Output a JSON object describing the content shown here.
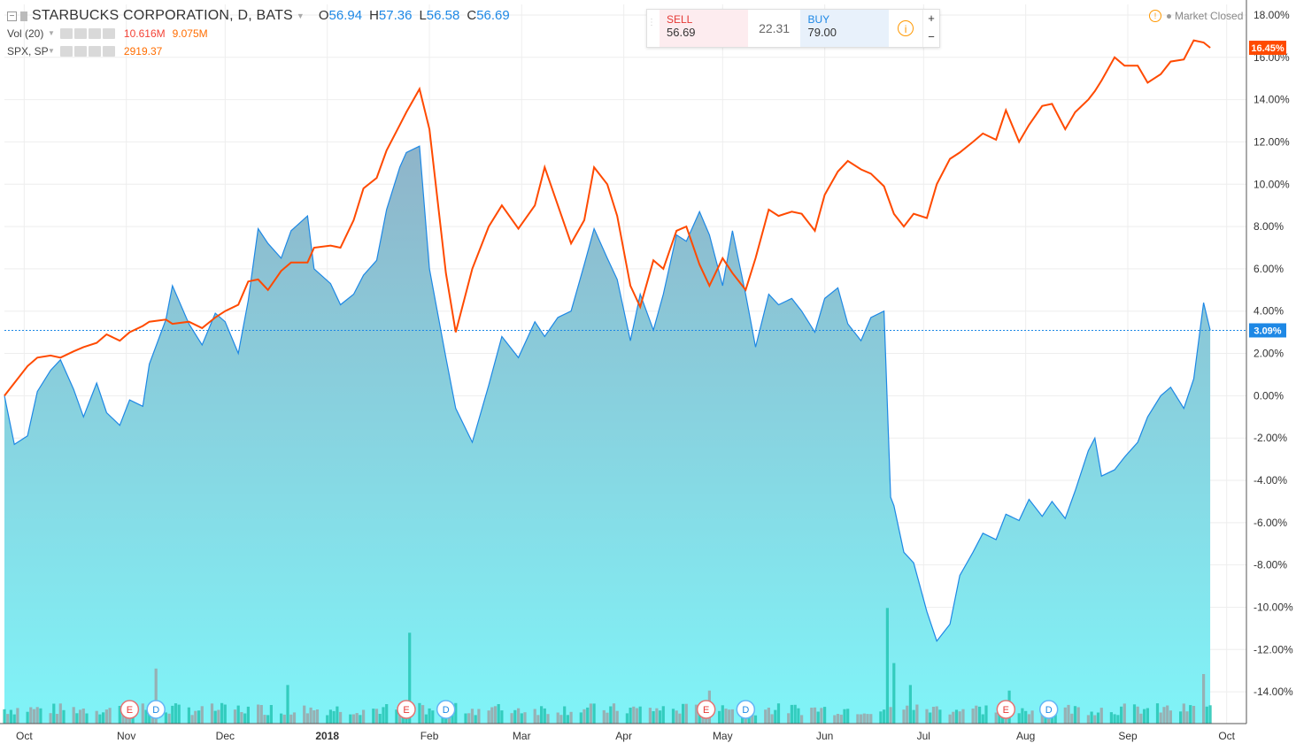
{
  "header": {
    "symbol_title": "STARBUCKS CORPORATION, D, BATS",
    "open_key": "O",
    "open": "56.94",
    "high_key": "H",
    "high": "57.36",
    "low_key": "L",
    "low": "56.58",
    "close_key": "C",
    "close": "56.69"
  },
  "indicators": [
    {
      "name": "Vol (20)",
      "values": [
        "10.616M",
        "9.075M"
      ]
    },
    {
      "name": "SPX, SP",
      "values": [
        "2919.37"
      ]
    }
  ],
  "trade_panel": {
    "sell_label": "SELL",
    "sell_price": "56.69",
    "spread": "22.31",
    "buy_label": "BUY",
    "buy_price": "79.00",
    "plus": "+",
    "minus": "−"
  },
  "market_status": "Market Closed",
  "colors": {
    "primary_line": "#1e88e5",
    "primary_fill_top": "#8fb4c9",
    "primary_fill_bottom": "#80f4f8",
    "compare_line": "#ff4a00",
    "volume_up": "#26c6b4",
    "volume_down": "#9aa5a8",
    "grid": "#eeeeee"
  },
  "chart_data": {
    "type": "area",
    "ylabel": "",
    "y_unit": "%",
    "ylim": [
      -15.5,
      18.5
    ],
    "y_ticks": [
      18,
      16,
      14,
      12,
      10,
      8,
      6,
      4,
      2,
      0,
      -2,
      -4,
      -6,
      -8,
      -10,
      -12,
      -14
    ],
    "y_tick_labels": [
      "18.00%",
      "16.00%",
      "14.00%",
      "12.00%",
      "10.00%",
      "8.00%",
      "6.00%",
      "4.00%",
      "2.00%",
      "0.00%",
      "-2.00%",
      "-4.00%",
      "-6.00%",
      "-8.00%",
      "-10.00%",
      "-12.00%",
      "-14.00%"
    ],
    "x_range": [
      "2017-09-25",
      "2018-10-07"
    ],
    "x_ticks": [
      {
        "date": "2017-10-01",
        "label": "Oct",
        "bold": false
      },
      {
        "date": "2017-11-01",
        "label": "Nov",
        "bold": false
      },
      {
        "date": "2017-12-01",
        "label": "Dec",
        "bold": false
      },
      {
        "date": "2018-01-01",
        "label": "2018",
        "bold": true
      },
      {
        "date": "2018-02-01",
        "label": "Feb",
        "bold": false
      },
      {
        "date": "2018-03-01",
        "label": "Mar",
        "bold": false
      },
      {
        "date": "2018-04-01",
        "label": "Apr",
        "bold": false
      },
      {
        "date": "2018-05-01",
        "label": "May",
        "bold": false
      },
      {
        "date": "2018-06-01",
        "label": "Jun",
        "bold": false
      },
      {
        "date": "2018-07-01",
        "label": "Jul",
        "bold": false
      },
      {
        "date": "2018-08-01",
        "label": "Aug",
        "bold": false
      },
      {
        "date": "2018-09-01",
        "label": "Sep",
        "bold": false
      },
      {
        "date": "2018-10-01",
        "label": "Oct",
        "bold": false
      }
    ],
    "series": [
      {
        "name": "STARBUCKS CORPORATION",
        "kind": "area",
        "last_value_label": "3.09%",
        "points": [
          [
            "2017-09-25",
            0.0
          ],
          [
            "2017-09-28",
            -2.3
          ],
          [
            "2017-10-02",
            -1.9
          ],
          [
            "2017-10-05",
            0.2
          ],
          [
            "2017-10-09",
            1.2
          ],
          [
            "2017-10-12",
            1.7
          ],
          [
            "2017-10-16",
            0.3
          ],
          [
            "2017-10-19",
            -1.0
          ],
          [
            "2017-10-23",
            0.6
          ],
          [
            "2017-10-26",
            -0.8
          ],
          [
            "2017-10-30",
            -1.4
          ],
          [
            "2017-11-02",
            -0.2
          ],
          [
            "2017-11-06",
            -0.5
          ],
          [
            "2017-11-08",
            1.5
          ],
          [
            "2017-11-13",
            3.6
          ],
          [
            "2017-11-15",
            5.2
          ],
          [
            "2017-11-20",
            3.4
          ],
          [
            "2017-11-24",
            2.4
          ],
          [
            "2017-11-28",
            3.9
          ],
          [
            "2017-12-01",
            3.5
          ],
          [
            "2017-12-05",
            2.0
          ],
          [
            "2017-12-08",
            4.5
          ],
          [
            "2017-12-11",
            7.9
          ],
          [
            "2017-12-14",
            7.2
          ],
          [
            "2017-12-18",
            6.5
          ],
          [
            "2017-12-21",
            7.8
          ],
          [
            "2017-12-26",
            8.5
          ],
          [
            "2017-12-28",
            6.0
          ],
          [
            "2018-01-02",
            5.3
          ],
          [
            "2018-01-05",
            4.3
          ],
          [
            "2018-01-09",
            4.8
          ],
          [
            "2018-01-12",
            5.7
          ],
          [
            "2018-01-16",
            6.4
          ],
          [
            "2018-01-19",
            8.8
          ],
          [
            "2018-01-23",
            10.8
          ],
          [
            "2018-01-25",
            11.5
          ],
          [
            "2018-01-29",
            11.8
          ],
          [
            "2018-02-01",
            6.0
          ],
          [
            "2018-02-06",
            1.8
          ],
          [
            "2018-02-09",
            -0.6
          ],
          [
            "2018-02-14",
            -2.2
          ],
          [
            "2018-02-19",
            0.5
          ],
          [
            "2018-02-23",
            2.8
          ],
          [
            "2018-02-28",
            1.8
          ],
          [
            "2018-03-05",
            3.5
          ],
          [
            "2018-03-08",
            2.8
          ],
          [
            "2018-03-12",
            3.7
          ],
          [
            "2018-03-16",
            4.0
          ],
          [
            "2018-03-20",
            6.2
          ],
          [
            "2018-03-23",
            7.9
          ],
          [
            "2018-03-27",
            6.5
          ],
          [
            "2018-03-30",
            5.5
          ],
          [
            "2018-04-03",
            2.6
          ],
          [
            "2018-04-06",
            4.8
          ],
          [
            "2018-04-10",
            3.1
          ],
          [
            "2018-04-13",
            4.8
          ],
          [
            "2018-04-17",
            7.6
          ],
          [
            "2018-04-20",
            7.3
          ],
          [
            "2018-04-24",
            8.7
          ],
          [
            "2018-04-27",
            7.6
          ],
          [
            "2018-05-01",
            5.2
          ],
          [
            "2018-05-04",
            7.8
          ],
          [
            "2018-05-08",
            4.8
          ],
          [
            "2018-05-11",
            2.3
          ],
          [
            "2018-05-15",
            4.8
          ],
          [
            "2018-05-18",
            4.3
          ],
          [
            "2018-05-22",
            4.6
          ],
          [
            "2018-05-25",
            4.0
          ],
          [
            "2018-05-29",
            3.0
          ],
          [
            "2018-06-01",
            4.6
          ],
          [
            "2018-06-05",
            5.1
          ],
          [
            "2018-06-08",
            3.4
          ],
          [
            "2018-06-12",
            2.6
          ],
          [
            "2018-06-15",
            3.7
          ],
          [
            "2018-06-19",
            4.0
          ],
          [
            "2018-06-21",
            -4.8
          ],
          [
            "2018-06-22",
            -5.2
          ],
          [
            "2018-06-25",
            -7.4
          ],
          [
            "2018-06-28",
            -7.9
          ],
          [
            "2018-07-02",
            -10.2
          ],
          [
            "2018-07-05",
            -11.6
          ],
          [
            "2018-07-09",
            -10.8
          ],
          [
            "2018-07-12",
            -8.5
          ],
          [
            "2018-07-16",
            -7.4
          ],
          [
            "2018-07-19",
            -6.5
          ],
          [
            "2018-07-23",
            -6.8
          ],
          [
            "2018-07-26",
            -5.6
          ],
          [
            "2018-07-30",
            -5.9
          ],
          [
            "2018-08-02",
            -4.9
          ],
          [
            "2018-08-06",
            -5.7
          ],
          [
            "2018-08-09",
            -5.0
          ],
          [
            "2018-08-13",
            -5.8
          ],
          [
            "2018-08-16",
            -4.5
          ],
          [
            "2018-08-20",
            -2.6
          ],
          [
            "2018-08-22",
            -2.0
          ],
          [
            "2018-08-24",
            -3.8
          ],
          [
            "2018-08-28",
            -3.5
          ],
          [
            "2018-08-31",
            -2.9
          ],
          [
            "2018-09-04",
            -2.2
          ],
          [
            "2018-09-07",
            -1.0
          ],
          [
            "2018-09-11",
            0.0
          ],
          [
            "2018-09-14",
            0.4
          ],
          [
            "2018-09-18",
            -0.6
          ],
          [
            "2018-09-21",
            0.8
          ],
          [
            "2018-09-24",
            4.4
          ],
          [
            "2018-09-26",
            3.09
          ]
        ]
      },
      {
        "name": "SPX, SP",
        "kind": "line",
        "last_value_label": "16.45%",
        "points": [
          [
            "2017-09-25",
            0.0
          ],
          [
            "2017-09-28",
            0.6
          ],
          [
            "2017-10-02",
            1.4
          ],
          [
            "2017-10-05",
            1.8
          ],
          [
            "2017-10-09",
            1.9
          ],
          [
            "2017-10-12",
            1.8
          ],
          [
            "2017-10-16",
            2.1
          ],
          [
            "2017-10-19",
            2.3
          ],
          [
            "2017-10-23",
            2.5
          ],
          [
            "2017-10-26",
            2.9
          ],
          [
            "2017-10-30",
            2.6
          ],
          [
            "2017-11-02",
            3.0
          ],
          [
            "2017-11-06",
            3.3
          ],
          [
            "2017-11-08",
            3.5
          ],
          [
            "2017-11-13",
            3.6
          ],
          [
            "2017-11-15",
            3.4
          ],
          [
            "2017-11-20",
            3.5
          ],
          [
            "2017-11-24",
            3.2
          ],
          [
            "2017-11-28",
            3.7
          ],
          [
            "2017-12-01",
            4.0
          ],
          [
            "2017-12-05",
            4.3
          ],
          [
            "2017-12-08",
            5.4
          ],
          [
            "2017-12-11",
            5.5
          ],
          [
            "2017-12-14",
            5.0
          ],
          [
            "2017-12-18",
            5.9
          ],
          [
            "2017-12-21",
            6.3
          ],
          [
            "2017-12-26",
            6.3
          ],
          [
            "2017-12-28",
            7.0
          ],
          [
            "2018-01-02",
            7.1
          ],
          [
            "2018-01-05",
            7.0
          ],
          [
            "2018-01-09",
            8.3
          ],
          [
            "2018-01-12",
            9.8
          ],
          [
            "2018-01-16",
            10.3
          ],
          [
            "2018-01-19",
            11.6
          ],
          [
            "2018-01-23",
            12.8
          ],
          [
            "2018-01-25",
            13.4
          ],
          [
            "2018-01-29",
            14.5
          ],
          [
            "2018-02-01",
            12.6
          ],
          [
            "2018-02-06",
            5.8
          ],
          [
            "2018-02-09",
            3.0
          ],
          [
            "2018-02-14",
            6.0
          ],
          [
            "2018-02-19",
            8.0
          ],
          [
            "2018-02-23",
            9.0
          ],
          [
            "2018-02-28",
            7.9
          ],
          [
            "2018-03-05",
            9.0
          ],
          [
            "2018-03-08",
            10.8
          ],
          [
            "2018-03-12",
            9.0
          ],
          [
            "2018-03-16",
            7.2
          ],
          [
            "2018-03-20",
            8.3
          ],
          [
            "2018-03-23",
            10.8
          ],
          [
            "2018-03-27",
            10.0
          ],
          [
            "2018-03-30",
            8.5
          ],
          [
            "2018-04-03",
            5.2
          ],
          [
            "2018-04-06",
            4.2
          ],
          [
            "2018-04-10",
            6.4
          ],
          [
            "2018-04-13",
            6.0
          ],
          [
            "2018-04-17",
            7.8
          ],
          [
            "2018-04-20",
            8.0
          ],
          [
            "2018-04-24",
            6.2
          ],
          [
            "2018-04-27",
            5.2
          ],
          [
            "2018-05-01",
            6.5
          ],
          [
            "2018-05-04",
            5.8
          ],
          [
            "2018-05-08",
            5.0
          ],
          [
            "2018-05-11",
            6.5
          ],
          [
            "2018-05-15",
            8.8
          ],
          [
            "2018-05-18",
            8.5
          ],
          [
            "2018-05-22",
            8.7
          ],
          [
            "2018-05-25",
            8.6
          ],
          [
            "2018-05-29",
            7.8
          ],
          [
            "2018-06-01",
            9.5
          ],
          [
            "2018-06-05",
            10.6
          ],
          [
            "2018-06-08",
            11.1
          ],
          [
            "2018-06-12",
            10.7
          ],
          [
            "2018-06-15",
            10.5
          ],
          [
            "2018-06-19",
            9.9
          ],
          [
            "2018-06-22",
            8.6
          ],
          [
            "2018-06-25",
            8.0
          ],
          [
            "2018-06-28",
            8.6
          ],
          [
            "2018-07-02",
            8.4
          ],
          [
            "2018-07-05",
            10.0
          ],
          [
            "2018-07-09",
            11.2
          ],
          [
            "2018-07-12",
            11.5
          ],
          [
            "2018-07-16",
            12.0
          ],
          [
            "2018-07-19",
            12.4
          ],
          [
            "2018-07-23",
            12.1
          ],
          [
            "2018-07-26",
            13.5
          ],
          [
            "2018-07-30",
            12.0
          ],
          [
            "2018-08-02",
            12.8
          ],
          [
            "2018-08-06",
            13.7
          ],
          [
            "2018-08-09",
            13.8
          ],
          [
            "2018-08-13",
            12.6
          ],
          [
            "2018-08-16",
            13.4
          ],
          [
            "2018-08-20",
            14.0
          ],
          [
            "2018-08-22",
            14.4
          ],
          [
            "2018-08-24",
            14.9
          ],
          [
            "2018-08-28",
            16.0
          ],
          [
            "2018-08-31",
            15.6
          ],
          [
            "2018-09-04",
            15.6
          ],
          [
            "2018-09-07",
            14.8
          ],
          [
            "2018-09-11",
            15.2
          ],
          [
            "2018-09-14",
            15.8
          ],
          [
            "2018-09-18",
            15.9
          ],
          [
            "2018-09-21",
            16.8
          ],
          [
            "2018-09-24",
            16.7
          ],
          [
            "2018-09-26",
            16.45
          ]
        ]
      }
    ],
    "volume": {
      "name": "Vol (20)",
      "unit": "M",
      "spikes": [
        [
          "2017-11-10",
          20.0
        ],
        [
          "2017-12-20",
          14.0
        ],
        [
          "2018-01-26",
          33.0
        ],
        [
          "2018-04-27",
          12.0
        ],
        [
          "2018-06-20",
          42.0
        ],
        [
          "2018-06-22",
          22.0
        ],
        [
          "2018-06-27",
          14.0
        ],
        [
          "2018-07-27",
          12.0
        ],
        [
          "2018-09-24",
          18.0
        ]
      ],
      "base_level": 5.0,
      "max_level": 45.0
    },
    "events": [
      {
        "date": "2017-11-02",
        "label": "E"
      },
      {
        "date": "2017-11-10",
        "label": "D"
      },
      {
        "date": "2018-01-25",
        "label": "E"
      },
      {
        "date": "2018-02-06",
        "label": "D"
      },
      {
        "date": "2018-04-26",
        "label": "E"
      },
      {
        "date": "2018-05-08",
        "label": "D"
      },
      {
        "date": "2018-07-26",
        "label": "E"
      },
      {
        "date": "2018-08-08",
        "label": "D"
      }
    ]
  }
}
